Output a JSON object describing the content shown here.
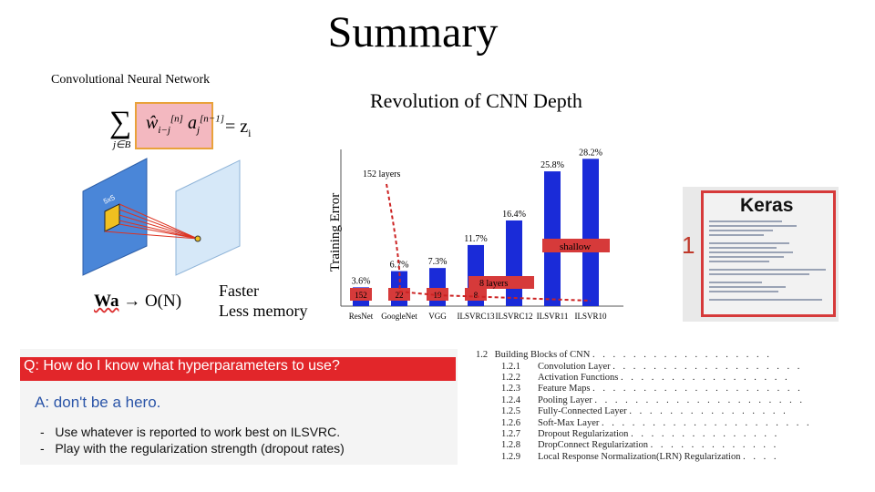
{
  "slide": {
    "title": "Summary"
  },
  "cnn_panel": {
    "caption": "Convolutional Neural Network",
    "sum_subscript": "j∈B",
    "formula_terms": "ŵ",
    "equals": "= z",
    "equals_sub": "i",
    "filter_label": "5x5",
    "complexity_label": "Wa",
    "arrow": "→",
    "complexity_value": "O(N)",
    "benefits": [
      "Faster",
      "Less memory"
    ]
  },
  "depth_chart": {
    "title": "Revolution of CNN Depth",
    "annotation_top": "152 layers",
    "annotation_mid": "8 layers",
    "annotation_shallow": "shallow"
  },
  "chart_data": {
    "type": "bar",
    "title": "Revolution of CNN Depth",
    "ylabel": "Training Error",
    "xlabel": "",
    "categories": [
      "ResNet",
      "GoogleNet",
      "VGG",
      "ILSVRC13",
      "ILSVRC12",
      "ILSVR11",
      "ILSVR10"
    ],
    "values": [
      3.6,
      6.7,
      7.3,
      11.7,
      16.4,
      25.8,
      28.2
    ],
    "value_labels": [
      "3.6%",
      "6.7%",
      "7.3%",
      "11.7%",
      "16.4%",
      "25.8%",
      "28.2%"
    ],
    "depth_labels": [
      "152",
      "22",
      "19",
      "8",
      "",
      "",
      ""
    ],
    "ylim": [
      0,
      30
    ],
    "grid": false,
    "colors": {
      "bar": "#1a2bd8",
      "trend": "#cc2222",
      "label_box": "#d63a3a"
    }
  },
  "keras": {
    "title": "Keras",
    "side_digit": "1"
  },
  "qa": {
    "question": "Q: How do I know what hyperparameters to use?",
    "answer": "A: don't be a hero.",
    "bullets": [
      "Use whatever is reported to work best on ILSVRC.",
      "Play with the regularization strength (dropout rates)"
    ]
  },
  "toc": {
    "items": [
      {
        "num": "1.2",
        "label": "Building Blocks of CNN"
      },
      {
        "num": "1.2.1",
        "label": "Convolution Layer"
      },
      {
        "num": "1.2.2",
        "label": "Activation Functions"
      },
      {
        "num": "1.2.3",
        "label": "Feature Maps"
      },
      {
        "num": "1.2.4",
        "label": "Pooling Layer"
      },
      {
        "num": "1.2.5",
        "label": "Fully-Connected Layer"
      },
      {
        "num": "1.2.6",
        "label": "Soft-Max Layer"
      },
      {
        "num": "1.2.7",
        "label": "Dropout Regularization"
      },
      {
        "num": "1.2.8",
        "label": "DropConnect Regularization"
      },
      {
        "num": "1.2.9",
        "label": "Local Response Normalization(LRN) Regularization"
      }
    ]
  }
}
